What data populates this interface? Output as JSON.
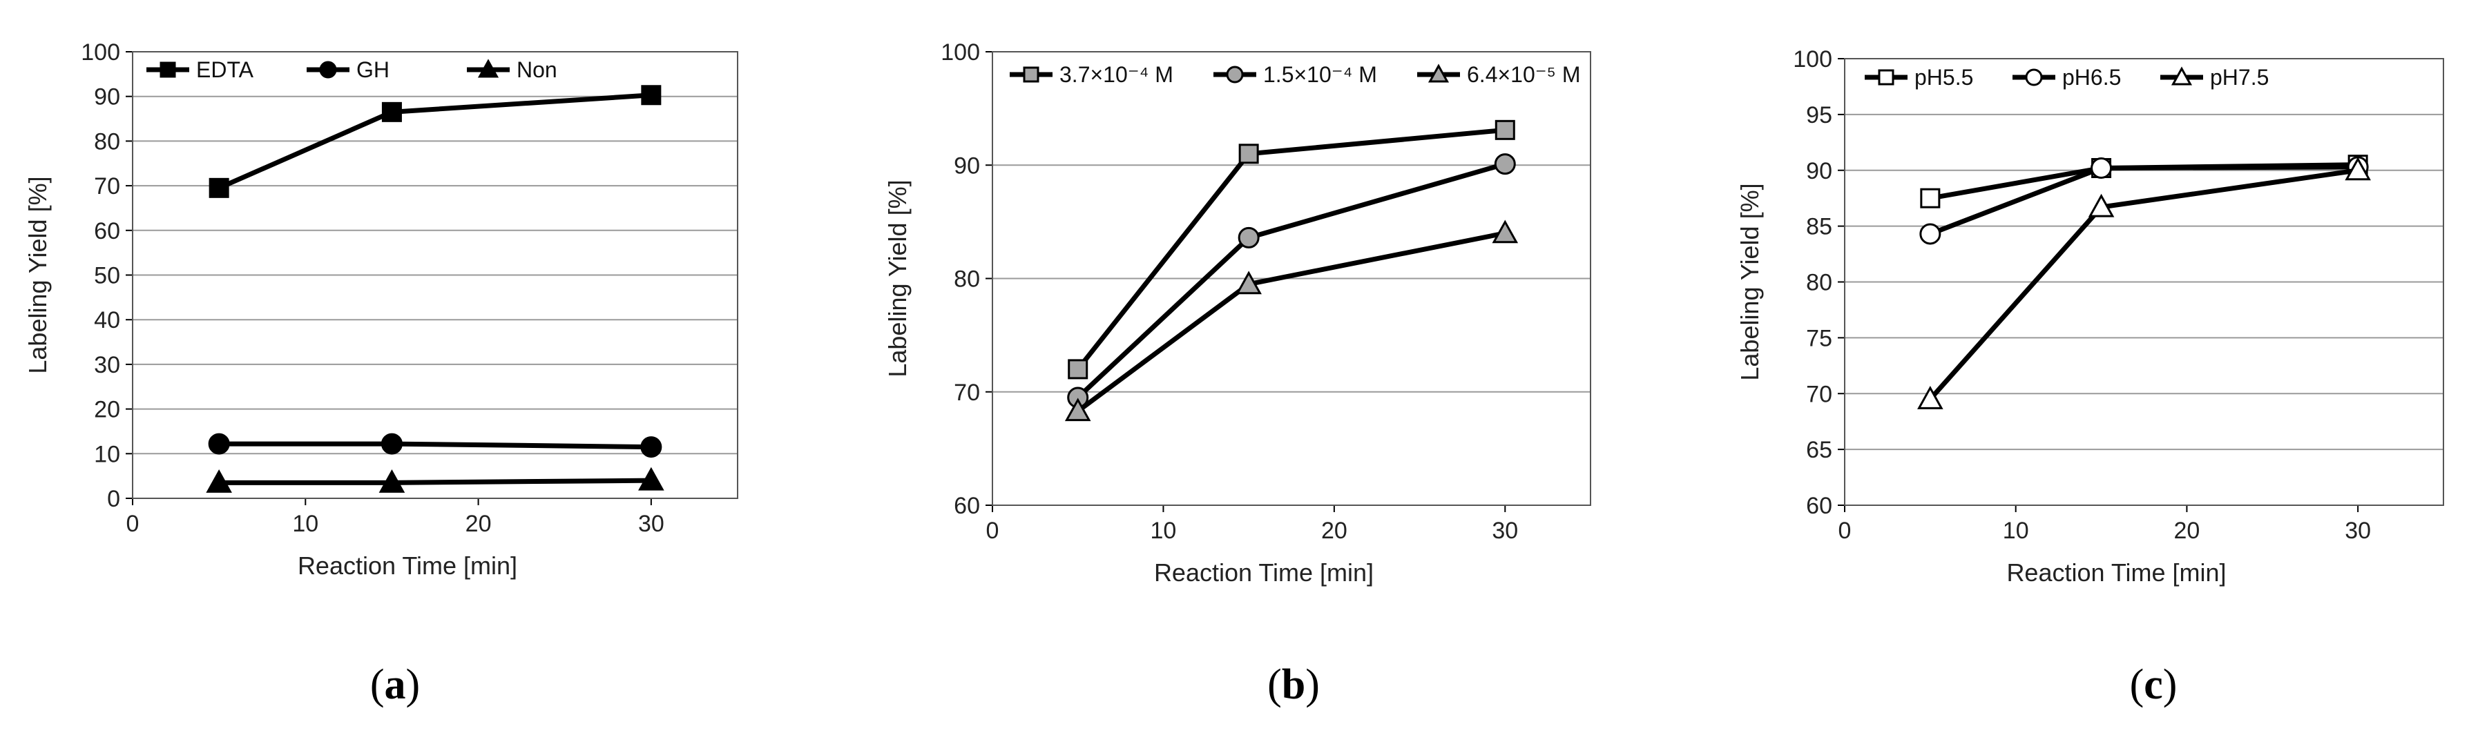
{
  "figure": {
    "panels": [
      {
        "label_open": "(",
        "label_letter": "a",
        "label_close": ")"
      },
      {
        "label_open": "(",
        "label_letter": "b",
        "label_close": ")"
      },
      {
        "label_open": "(",
        "label_letter": "c",
        "label_close": ")"
      }
    ]
  },
  "chart_data": [
    {
      "type": "line",
      "panel": "a",
      "title": "",
      "xlabel": "Reaction Time [min]",
      "ylabel": "Labeling Yield [%]",
      "xlim": [
        0,
        35
      ],
      "ylim": [
        0,
        100
      ],
      "xticks": [
        0,
        10,
        20,
        30
      ],
      "yticks": [
        0,
        10,
        20,
        30,
        40,
        50,
        60,
        70,
        80,
        90,
        100
      ],
      "grid": "horizontal",
      "legend_position": "top",
      "x": [
        5,
        15,
        30
      ],
      "series": [
        {
          "name": "EDTA",
          "marker": "square",
          "fill": "#000000",
          "values": [
            69.5,
            86.5,
            90.3
          ]
        },
        {
          "name": "GH",
          "marker": "circle",
          "fill": "#000000",
          "values": [
            12.2,
            12.2,
            11.5
          ]
        },
        {
          "name": "Non",
          "marker": "triangle",
          "fill": "#000000",
          "values": [
            3.5,
            3.5,
            4.0
          ]
        }
      ]
    },
    {
      "type": "line",
      "panel": "b",
      "title": "",
      "xlabel": "Reaction Time [min]",
      "ylabel": "Labeling Yield [%]",
      "xlim": [
        0,
        35
      ],
      "ylim": [
        60,
        100
      ],
      "xticks": [
        0,
        10,
        20,
        30
      ],
      "yticks": [
        60,
        70,
        80,
        90,
        100
      ],
      "grid": "horizontal",
      "legend_position": "top",
      "x": [
        5,
        15,
        30
      ],
      "series": [
        {
          "name": "3.7×10⁻⁴ M",
          "marker": "square",
          "fill": "#a6a6a6",
          "values": [
            72.0,
            91.0,
            93.1
          ]
        },
        {
          "name": "1.5×10⁻⁴ M",
          "marker": "circle",
          "fill": "#a6a6a6",
          "values": [
            69.5,
            83.6,
            90.1
          ]
        },
        {
          "name": "6.4×10⁻⁵ M",
          "marker": "triangle",
          "fill": "#a6a6a6",
          "values": [
            68.3,
            79.5,
            84.0
          ]
        }
      ]
    },
    {
      "type": "line",
      "panel": "c",
      "title": "",
      "xlabel": "Reaction Time [min]",
      "ylabel": "Labeling Yield [%]",
      "xlim": [
        0,
        35
      ],
      "ylim": [
        60,
        100
      ],
      "xticks": [
        0,
        10,
        20,
        30
      ],
      "yticks": [
        60,
        65,
        70,
        75,
        80,
        85,
        90,
        95,
        100
      ],
      "grid": "horizontal",
      "legend_position": "top",
      "x": [
        5,
        15,
        30
      ],
      "series": [
        {
          "name": "pH5.5",
          "marker": "square",
          "fill": "#ffffff",
          "values": [
            87.5,
            90.2,
            90.5
          ]
        },
        {
          "name": "pH6.5",
          "marker": "circle",
          "fill": "#ffffff",
          "values": [
            84.3,
            90.2,
            90.3
          ]
        },
        {
          "name": "pH7.5",
          "marker": "triangle",
          "fill": "#ffffff",
          "values": [
            69.5,
            86.7,
            90.0
          ]
        }
      ]
    }
  ]
}
